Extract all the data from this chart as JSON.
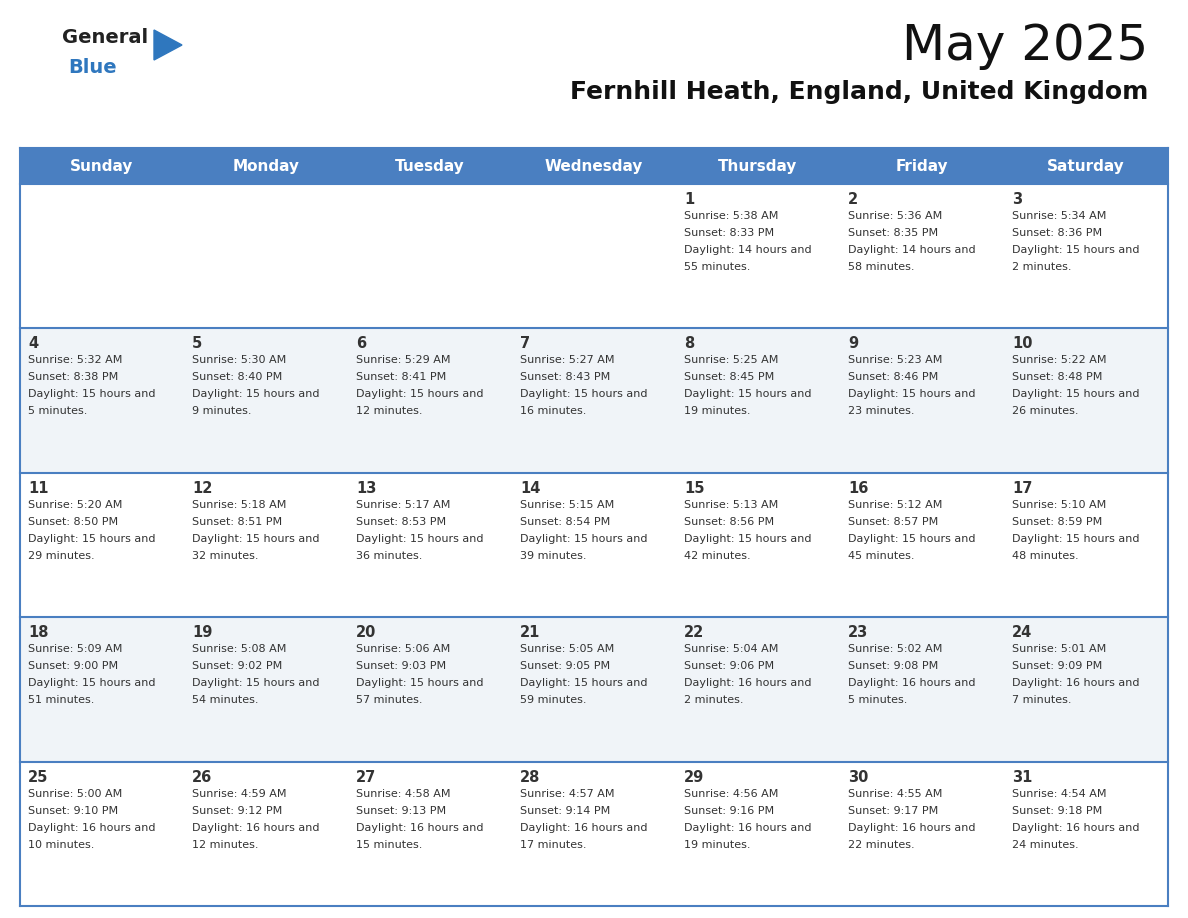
{
  "title": "May 2025",
  "subtitle": "Fernhill Heath, England, United Kingdom",
  "header_bg": "#4a7fc1",
  "header_text_color": "#FFFFFF",
  "weekdays": [
    "Sunday",
    "Monday",
    "Tuesday",
    "Wednesday",
    "Thursday",
    "Friday",
    "Saturday"
  ],
  "cell_border_color": "#4a7fc1",
  "text_color": "#333333",
  "logo_general_color": "#222222",
  "logo_blue_color": "#2F77BE",
  "days": [
    {
      "day": 1,
      "col": 4,
      "row": 0,
      "sunrise": "5:38 AM",
      "sunset": "8:33 PM",
      "daylight": "14 hours and 55 minutes"
    },
    {
      "day": 2,
      "col": 5,
      "row": 0,
      "sunrise": "5:36 AM",
      "sunset": "8:35 PM",
      "daylight": "14 hours and 58 minutes"
    },
    {
      "day": 3,
      "col": 6,
      "row": 0,
      "sunrise": "5:34 AM",
      "sunset": "8:36 PM",
      "daylight": "15 hours and 2 minutes"
    },
    {
      "day": 4,
      "col": 0,
      "row": 1,
      "sunrise": "5:32 AM",
      "sunset": "8:38 PM",
      "daylight": "15 hours and 5 minutes"
    },
    {
      "day": 5,
      "col": 1,
      "row": 1,
      "sunrise": "5:30 AM",
      "sunset": "8:40 PM",
      "daylight": "15 hours and 9 minutes"
    },
    {
      "day": 6,
      "col": 2,
      "row": 1,
      "sunrise": "5:29 AM",
      "sunset": "8:41 PM",
      "daylight": "15 hours and 12 minutes"
    },
    {
      "day": 7,
      "col": 3,
      "row": 1,
      "sunrise": "5:27 AM",
      "sunset": "8:43 PM",
      "daylight": "15 hours and 16 minutes"
    },
    {
      "day": 8,
      "col": 4,
      "row": 1,
      "sunrise": "5:25 AM",
      "sunset": "8:45 PM",
      "daylight": "15 hours and 19 minutes"
    },
    {
      "day": 9,
      "col": 5,
      "row": 1,
      "sunrise": "5:23 AM",
      "sunset": "8:46 PM",
      "daylight": "15 hours and 23 minutes"
    },
    {
      "day": 10,
      "col": 6,
      "row": 1,
      "sunrise": "5:22 AM",
      "sunset": "8:48 PM",
      "daylight": "15 hours and 26 minutes"
    },
    {
      "day": 11,
      "col": 0,
      "row": 2,
      "sunrise": "5:20 AM",
      "sunset": "8:50 PM",
      "daylight": "15 hours and 29 minutes"
    },
    {
      "day": 12,
      "col": 1,
      "row": 2,
      "sunrise": "5:18 AM",
      "sunset": "8:51 PM",
      "daylight": "15 hours and 32 minutes"
    },
    {
      "day": 13,
      "col": 2,
      "row": 2,
      "sunrise": "5:17 AM",
      "sunset": "8:53 PM",
      "daylight": "15 hours and 36 minutes"
    },
    {
      "day": 14,
      "col": 3,
      "row": 2,
      "sunrise": "5:15 AM",
      "sunset": "8:54 PM",
      "daylight": "15 hours and 39 minutes"
    },
    {
      "day": 15,
      "col": 4,
      "row": 2,
      "sunrise": "5:13 AM",
      "sunset": "8:56 PM",
      "daylight": "15 hours and 42 minutes"
    },
    {
      "day": 16,
      "col": 5,
      "row": 2,
      "sunrise": "5:12 AM",
      "sunset": "8:57 PM",
      "daylight": "15 hours and 45 minutes"
    },
    {
      "day": 17,
      "col": 6,
      "row": 2,
      "sunrise": "5:10 AM",
      "sunset": "8:59 PM",
      "daylight": "15 hours and 48 minutes"
    },
    {
      "day": 18,
      "col": 0,
      "row": 3,
      "sunrise": "5:09 AM",
      "sunset": "9:00 PM",
      "daylight": "15 hours and 51 minutes"
    },
    {
      "day": 19,
      "col": 1,
      "row": 3,
      "sunrise": "5:08 AM",
      "sunset": "9:02 PM",
      "daylight": "15 hours and 54 minutes"
    },
    {
      "day": 20,
      "col": 2,
      "row": 3,
      "sunrise": "5:06 AM",
      "sunset": "9:03 PM",
      "daylight": "15 hours and 57 minutes"
    },
    {
      "day": 21,
      "col": 3,
      "row": 3,
      "sunrise": "5:05 AM",
      "sunset": "9:05 PM",
      "daylight": "15 hours and 59 minutes"
    },
    {
      "day": 22,
      "col": 4,
      "row": 3,
      "sunrise": "5:04 AM",
      "sunset": "9:06 PM",
      "daylight": "16 hours and 2 minutes"
    },
    {
      "day": 23,
      "col": 5,
      "row": 3,
      "sunrise": "5:02 AM",
      "sunset": "9:08 PM",
      "daylight": "16 hours and 5 minutes"
    },
    {
      "day": 24,
      "col": 6,
      "row": 3,
      "sunrise": "5:01 AM",
      "sunset": "9:09 PM",
      "daylight": "16 hours and 7 minutes"
    },
    {
      "day": 25,
      "col": 0,
      "row": 4,
      "sunrise": "5:00 AM",
      "sunset": "9:10 PM",
      "daylight": "16 hours and 10 minutes"
    },
    {
      "day": 26,
      "col": 1,
      "row": 4,
      "sunrise": "4:59 AM",
      "sunset": "9:12 PM",
      "daylight": "16 hours and 12 minutes"
    },
    {
      "day": 27,
      "col": 2,
      "row": 4,
      "sunrise": "4:58 AM",
      "sunset": "9:13 PM",
      "daylight": "16 hours and 15 minutes"
    },
    {
      "day": 28,
      "col": 3,
      "row": 4,
      "sunrise": "4:57 AM",
      "sunset": "9:14 PM",
      "daylight": "16 hours and 17 minutes"
    },
    {
      "day": 29,
      "col": 4,
      "row": 4,
      "sunrise": "4:56 AM",
      "sunset": "9:16 PM",
      "daylight": "16 hours and 19 minutes"
    },
    {
      "day": 30,
      "col": 5,
      "row": 4,
      "sunrise": "4:55 AM",
      "sunset": "9:17 PM",
      "daylight": "16 hours and 22 minutes"
    },
    {
      "day": 31,
      "col": 6,
      "row": 4,
      "sunrise": "4:54 AM",
      "sunset": "9:18 PM",
      "daylight": "16 hours and 24 minutes"
    }
  ]
}
